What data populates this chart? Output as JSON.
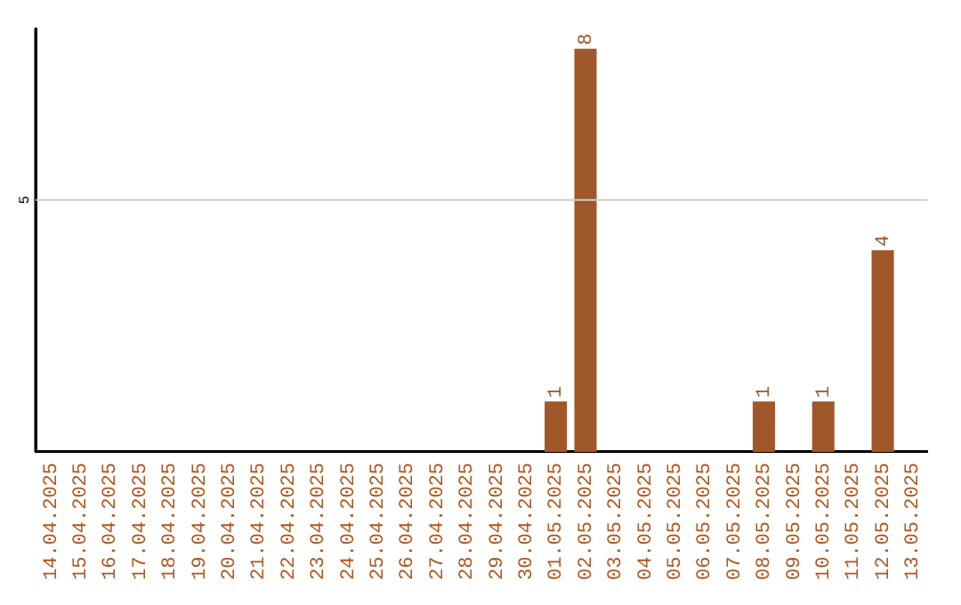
{
  "chart_data": {
    "type": "bar",
    "categories": [
      "14.04.2025",
      "15.04.2025",
      "16.04.2025",
      "17.04.2025",
      "18.04.2025",
      "19.04.2025",
      "20.04.2025",
      "21.04.2025",
      "22.04.2025",
      "23.04.2025",
      "24.04.2025",
      "25.04.2025",
      "26.04.2025",
      "27.04.2025",
      "28.04.2025",
      "29.04.2025",
      "30.04.2025",
      "01.05.2025",
      "02.05.2025",
      "03.05.2025",
      "04.05.2025",
      "05.05.2025",
      "06.05.2025",
      "07.05.2025",
      "08.05.2025",
      "09.05.2025",
      "10.05.2025",
      "11.05.2025",
      "12.05.2025",
      "13.05.2025"
    ],
    "values": [
      null,
      null,
      null,
      null,
      null,
      null,
      null,
      null,
      null,
      null,
      null,
      null,
      null,
      null,
      null,
      null,
      null,
      1,
      8,
      null,
      null,
      null,
      null,
      null,
      1,
      null,
      1,
      null,
      4,
      null
    ],
    "ylim": [
      0,
      8.4
    ],
    "ref_lines": [
      {
        "axis": "y",
        "value": 5,
        "label": "5",
        "color": "#cccccc"
      }
    ],
    "value_labels": [
      null,
      null,
      null,
      null,
      null,
      null,
      null,
      null,
      null,
      null,
      null,
      null,
      null,
      null,
      null,
      null,
      null,
      "1",
      "8",
      null,
      null,
      null,
      null,
      null,
      "1",
      null,
      "1",
      null,
      "4",
      null
    ],
    "color": "#a0572a",
    "legend": false
  }
}
